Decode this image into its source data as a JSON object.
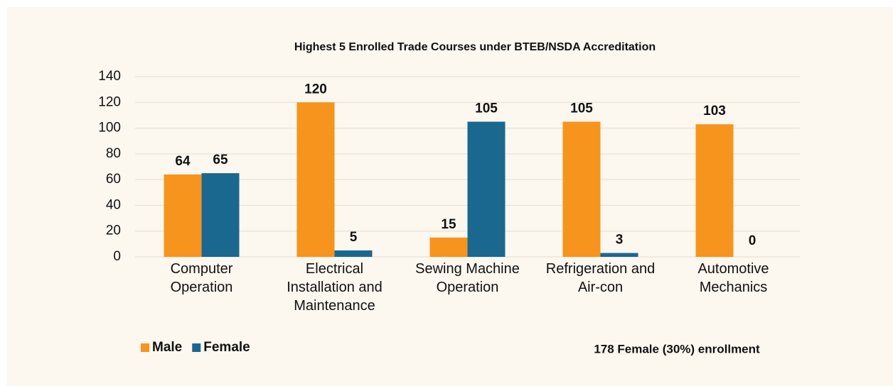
{
  "chart_data": {
    "type": "bar",
    "title": "Highest 5 Enrolled Trade Courses under BTEB/NSDA Accreditation",
    "categories": [
      "Computer Operation",
      "Electrical Installation and Maintenance",
      "Sewing Machine Operation",
      "Refrigeration and Air-con",
      "Automotive Mechanics"
    ],
    "series": [
      {
        "name": "Male",
        "color": "#f7941d",
        "values": [
          64,
          120,
          15,
          105,
          103
        ]
      },
      {
        "name": "Female",
        "color": "#1a6890",
        "values": [
          65,
          5,
          105,
          3,
          0
        ]
      }
    ],
    "ylim": [
      0,
      140
    ],
    "yticks": [
      0,
      20,
      40,
      60,
      80,
      100,
      120,
      140
    ],
    "grid": true,
    "legend": "bottom-left",
    "annotation": "178 Female (30%) enrollment"
  }
}
